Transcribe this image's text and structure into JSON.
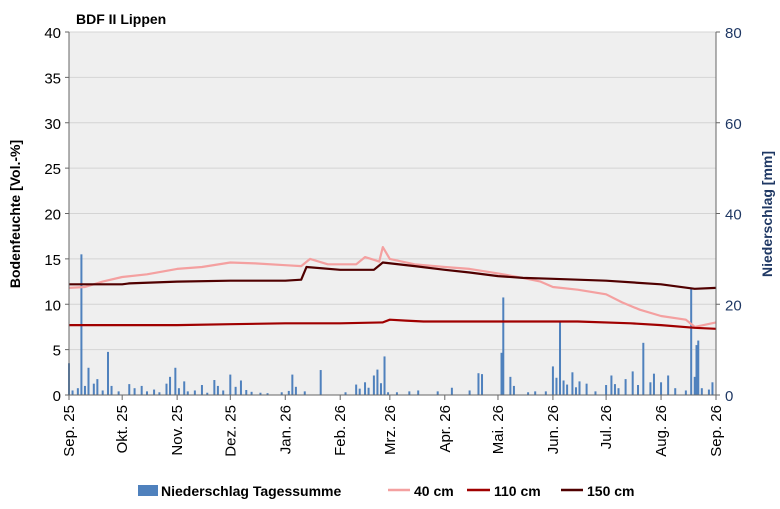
{
  "chart_data": {
    "type": "line",
    "title": "BDF II Lippen",
    "ylabel": "Bodenfeuchte [Vol.-%]",
    "y2label": "Niederschlag [mm]",
    "ylim": [
      0,
      40
    ],
    "y2lim": [
      0,
      80
    ],
    "yticks": [
      0,
      5,
      10,
      15,
      20,
      25,
      30,
      35,
      40
    ],
    "y2ticks": [
      0,
      20,
      40,
      60,
      80
    ],
    "x_start": "2025-09-01",
    "x_end": "2026-09-01",
    "xticks": [
      {
        "date": "2025-09-01",
        "label": "Sep. 25"
      },
      {
        "date": "2025-10-01",
        "label": "Okt. 25"
      },
      {
        "date": "2025-11-01",
        "label": "Nov. 25"
      },
      {
        "date": "2025-12-01",
        "label": "Dez. 25"
      },
      {
        "date": "2026-01-01",
        "label": "Jan. 26"
      },
      {
        "date": "2026-02-01",
        "label": "Feb. 26"
      },
      {
        "date": "2026-03-01",
        "label": "Mrz. 26"
      },
      {
        "date": "2026-04-01",
        "label": "Apr. 26"
      },
      {
        "date": "2026-05-01",
        "label": "Mai. 26"
      },
      {
        "date": "2026-06-01",
        "label": "Jun. 26"
      },
      {
        "date": "2026-07-01",
        "label": "Jul. 26"
      },
      {
        "date": "2026-08-01",
        "label": "Aug. 26"
      },
      {
        "date": "2026-09-01",
        "label": "Sep. 26"
      }
    ],
    "grid": true,
    "legend_position": "bottom",
    "series": [
      {
        "name": "40 cm",
        "color": "#F4A0A0",
        "axis": "left",
        "points": [
          [
            "2025-09-01",
            11.8
          ],
          [
            "2025-09-10",
            11.9
          ],
          [
            "2025-09-20",
            12.5
          ],
          [
            "2025-10-01",
            13.0
          ],
          [
            "2025-10-15",
            13.3
          ],
          [
            "2025-11-01",
            13.9
          ],
          [
            "2025-11-15",
            14.1
          ],
          [
            "2025-12-01",
            14.6
          ],
          [
            "2025-12-15",
            14.5
          ],
          [
            "2026-01-01",
            14.3
          ],
          [
            "2026-01-10",
            14.2
          ],
          [
            "2026-01-15",
            15.0
          ],
          [
            "2026-01-25",
            14.4
          ],
          [
            "2026-02-10",
            14.4
          ],
          [
            "2026-02-15",
            15.2
          ],
          [
            "2026-02-20",
            14.9
          ],
          [
            "2026-02-23",
            14.7
          ],
          [
            "2026-02-25",
            16.3
          ],
          [
            "2026-03-01",
            15.0
          ],
          [
            "2026-03-15",
            14.4
          ],
          [
            "2026-04-01",
            14.1
          ],
          [
            "2026-04-15",
            13.9
          ],
          [
            "2026-05-01",
            13.4
          ],
          [
            "2026-05-15",
            12.9
          ],
          [
            "2026-05-25",
            12.5
          ],
          [
            "2026-06-01",
            11.9
          ],
          [
            "2026-06-15",
            11.6
          ],
          [
            "2026-07-01",
            11.1
          ],
          [
            "2026-07-10",
            10.2
          ],
          [
            "2026-07-20",
            9.4
          ],
          [
            "2026-08-01",
            8.7
          ],
          [
            "2026-08-15",
            8.3
          ],
          [
            "2026-08-20",
            7.5
          ],
          [
            "2026-08-25",
            7.7
          ],
          [
            "2026-09-01",
            8.0
          ]
        ]
      },
      {
        "name": "110 cm",
        "color": "#A00000",
        "axis": "left",
        "points": [
          [
            "2025-09-01",
            7.7
          ],
          [
            "2025-11-01",
            7.7
          ],
          [
            "2025-12-01",
            7.8
          ],
          [
            "2026-01-01",
            7.9
          ],
          [
            "2026-02-01",
            7.9
          ],
          [
            "2026-02-25",
            8.0
          ],
          [
            "2026-03-01",
            8.3
          ],
          [
            "2026-03-10",
            8.2
          ],
          [
            "2026-03-20",
            8.1
          ],
          [
            "2026-05-01",
            8.1
          ],
          [
            "2026-06-15",
            8.1
          ],
          [
            "2026-07-15",
            7.9
          ],
          [
            "2026-08-01",
            7.7
          ],
          [
            "2026-08-20",
            7.4
          ],
          [
            "2026-09-01",
            7.3
          ]
        ]
      },
      {
        "name": "150 cm",
        "color": "#500000",
        "axis": "left",
        "points": [
          [
            "2025-09-01",
            12.2
          ],
          [
            "2025-10-01",
            12.2
          ],
          [
            "2025-10-05",
            12.3
          ],
          [
            "2025-11-01",
            12.5
          ],
          [
            "2025-12-01",
            12.6
          ],
          [
            "2026-01-01",
            12.6
          ],
          [
            "2026-01-10",
            12.7
          ],
          [
            "2026-01-13",
            14.1
          ],
          [
            "2026-02-01",
            13.8
          ],
          [
            "2026-02-20",
            13.8
          ],
          [
            "2026-02-25",
            14.6
          ],
          [
            "2026-03-15",
            14.2
          ],
          [
            "2026-04-01",
            13.8
          ],
          [
            "2026-04-15",
            13.5
          ],
          [
            "2026-05-01",
            13.1
          ],
          [
            "2026-05-15",
            12.9
          ],
          [
            "2026-06-01",
            12.8
          ],
          [
            "2026-07-01",
            12.6
          ],
          [
            "2026-08-01",
            12.2
          ],
          [
            "2026-08-20",
            11.7
          ],
          [
            "2026-09-01",
            11.8
          ]
        ]
      }
    ],
    "bars": {
      "name": "Niederschlag Tagessumme",
      "color": "#4F81BD",
      "axis": "right",
      "points": [
        [
          "2025-09-01",
          7.0
        ],
        [
          "2025-09-03",
          1.0
        ],
        [
          "2025-09-06",
          1.5
        ],
        [
          "2025-09-08",
          31.0
        ],
        [
          "2025-09-10",
          2.0
        ],
        [
          "2025-09-12",
          6.0
        ],
        [
          "2025-09-15",
          2.5
        ],
        [
          "2025-09-17",
          3.5
        ],
        [
          "2025-09-20",
          1.0
        ],
        [
          "2025-09-23",
          9.5
        ],
        [
          "2025-09-25",
          2.0
        ],
        [
          "2025-09-29",
          0.8
        ],
        [
          "2025-10-05",
          2.4
        ],
        [
          "2025-10-08",
          1.5
        ],
        [
          "2025-10-12",
          2.0
        ],
        [
          "2025-10-15",
          0.8
        ],
        [
          "2025-10-19",
          1.2
        ],
        [
          "2025-10-22",
          0.6
        ],
        [
          "2025-10-26",
          2.5
        ],
        [
          "2025-10-28",
          4.0
        ],
        [
          "2025-10-31",
          6.0
        ],
        [
          "2025-11-02",
          1.5
        ],
        [
          "2025-11-05",
          3.0
        ],
        [
          "2025-11-07",
          0.8
        ],
        [
          "2025-11-11",
          1.0
        ],
        [
          "2025-11-15",
          2.2
        ],
        [
          "2025-11-18",
          0.5
        ],
        [
          "2025-11-22",
          3.3
        ],
        [
          "2025-11-24",
          2.0
        ],
        [
          "2025-11-27",
          1.0
        ],
        [
          "2025-12-01",
          4.5
        ],
        [
          "2025-12-04",
          1.8
        ],
        [
          "2025-12-07",
          3.2
        ],
        [
          "2025-12-10",
          1.1
        ],
        [
          "2025-12-13",
          0.7
        ],
        [
          "2025-12-18",
          0.5
        ],
        [
          "2025-12-22",
          0.4
        ],
        [
          "2025-12-30",
          0.6
        ],
        [
          "2026-01-03",
          0.9
        ],
        [
          "2026-01-05",
          4.5
        ],
        [
          "2026-01-07",
          1.8
        ],
        [
          "2026-01-12",
          0.8
        ],
        [
          "2026-01-21",
          5.5
        ],
        [
          "2026-02-04",
          0.6
        ],
        [
          "2026-02-10",
          2.3
        ],
        [
          "2026-02-12",
          1.4
        ],
        [
          "2026-02-15",
          2.8
        ],
        [
          "2026-02-17",
          1.6
        ],
        [
          "2026-02-20",
          4.3
        ],
        [
          "2026-02-22",
          5.6
        ],
        [
          "2026-02-24",
          2.6
        ],
        [
          "2026-02-26",
          8.5
        ],
        [
          "2026-02-28",
          0.6
        ],
        [
          "2026-03-05",
          0.6
        ],
        [
          "2026-03-12",
          0.8
        ],
        [
          "2026-03-17",
          1.0
        ],
        [
          "2026-03-28",
          0.8
        ],
        [
          "2026-04-05",
          1.6
        ],
        [
          "2026-04-15",
          1.0
        ],
        [
          "2026-04-20",
          4.8
        ],
        [
          "2026-04-22",
          4.6
        ],
        [
          "2026-05-03",
          9.3
        ],
        [
          "2026-05-04",
          21.5
        ],
        [
          "2026-05-08",
          4.0
        ],
        [
          "2026-05-10",
          2.0
        ],
        [
          "2026-05-18",
          0.6
        ],
        [
          "2026-05-22",
          0.8
        ],
        [
          "2026-05-28",
          0.8
        ],
        [
          "2026-06-01",
          6.3
        ],
        [
          "2026-06-03",
          3.8
        ],
        [
          "2026-06-05",
          16.2
        ],
        [
          "2026-06-07",
          3.2
        ],
        [
          "2026-06-09",
          2.3
        ],
        [
          "2026-06-12",
          5.0
        ],
        [
          "2026-06-14",
          1.7
        ],
        [
          "2026-06-16",
          3.0
        ],
        [
          "2026-06-20",
          2.5
        ],
        [
          "2026-06-25",
          0.8
        ],
        [
          "2026-07-01",
          2.2
        ],
        [
          "2026-07-04",
          4.3
        ],
        [
          "2026-07-06",
          2.4
        ],
        [
          "2026-07-08",
          1.5
        ],
        [
          "2026-07-12",
          3.5
        ],
        [
          "2026-07-16",
          5.2
        ],
        [
          "2026-07-19",
          2.2
        ],
        [
          "2026-07-22",
          11.5
        ],
        [
          "2026-07-26",
          2.8
        ],
        [
          "2026-07-28",
          4.7
        ],
        [
          "2026-08-01",
          2.8
        ],
        [
          "2026-08-05",
          4.3
        ],
        [
          "2026-08-09",
          1.5
        ],
        [
          "2026-08-15",
          1.0
        ],
        [
          "2026-08-18",
          23.5
        ],
        [
          "2026-08-20",
          4.0
        ],
        [
          "2026-08-21",
          11.0
        ],
        [
          "2026-08-22",
          12.0
        ],
        [
          "2026-08-24",
          1.5
        ],
        [
          "2026-08-28",
          1.2
        ],
        [
          "2026-08-30",
          2.8
        ]
      ]
    }
  }
}
